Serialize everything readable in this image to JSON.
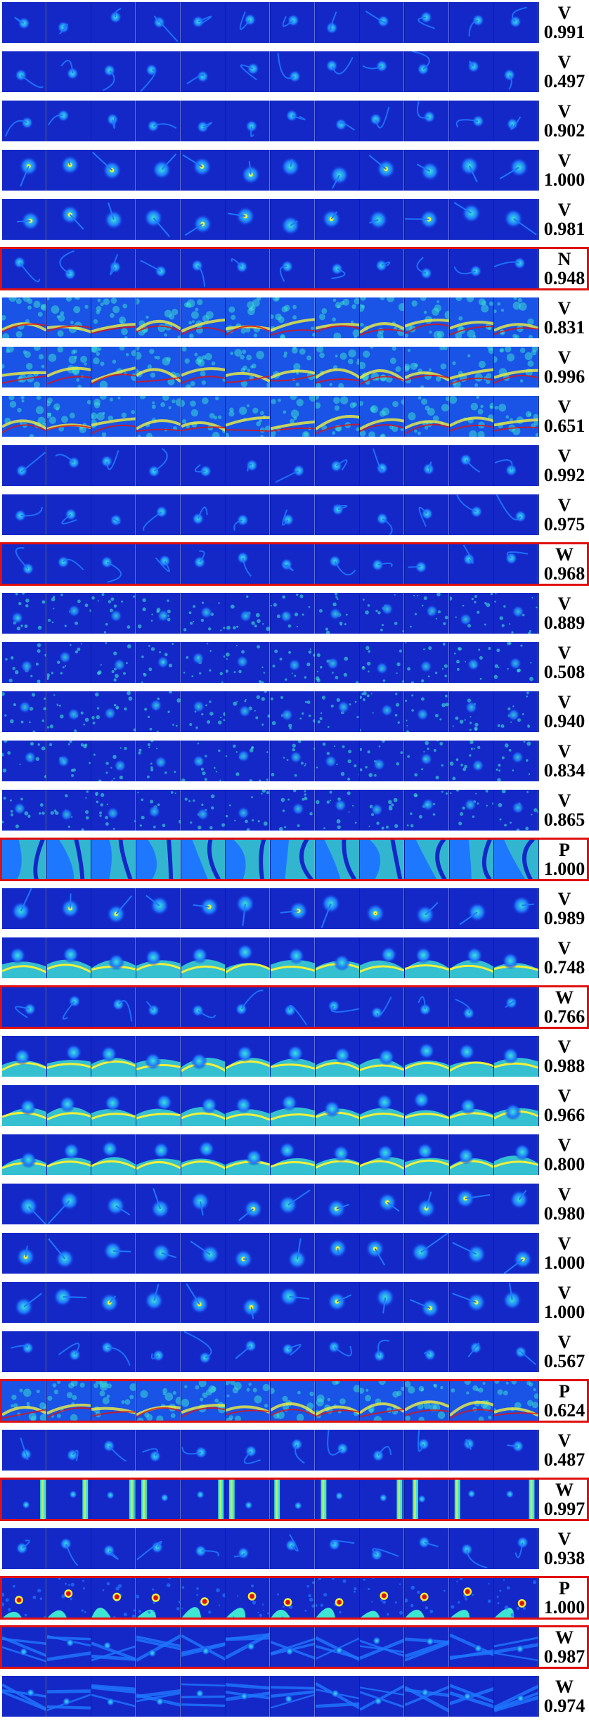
{
  "rows": [
    {
      "label": "V",
      "score": "0.991",
      "highlighted": false,
      "style": "small"
    },
    {
      "label": "V",
      "score": "0.497",
      "highlighted": false,
      "style": "small"
    },
    {
      "label": "V",
      "score": "0.902",
      "highlighted": false,
      "style": "small"
    },
    {
      "label": "V",
      "score": "1.000",
      "highlighted": false,
      "style": "blob"
    },
    {
      "label": "V",
      "score": "0.981",
      "highlighted": false,
      "style": "blob"
    },
    {
      "label": "N",
      "score": "0.948",
      "highlighted": true,
      "style": "small"
    },
    {
      "label": "V",
      "score": "0.831",
      "highlighted": false,
      "style": "tissue"
    },
    {
      "label": "V",
      "score": "0.996",
      "highlighted": false,
      "style": "tissue"
    },
    {
      "label": "V",
      "score": "0.651",
      "highlighted": false,
      "style": "tissue"
    },
    {
      "label": "V",
      "score": "0.992",
      "highlighted": false,
      "style": "small"
    },
    {
      "label": "V",
      "score": "0.975",
      "highlighted": false,
      "style": "small"
    },
    {
      "label": "W",
      "score": "0.968",
      "highlighted": true,
      "style": "small"
    },
    {
      "label": "V",
      "score": "0.889",
      "highlighted": false,
      "style": "speckle"
    },
    {
      "label": "V",
      "score": "0.508",
      "highlighted": false,
      "style": "speckle"
    },
    {
      "label": "V",
      "score": "0.940",
      "highlighted": false,
      "style": "speckle"
    },
    {
      "label": "V",
      "score": "0.834",
      "highlighted": false,
      "style": "speckle"
    },
    {
      "label": "V",
      "score": "0.865",
      "highlighted": false,
      "style": "speckle"
    },
    {
      "label": "P",
      "score": "1.000",
      "highlighted": true,
      "style": "wall"
    },
    {
      "label": "V",
      "score": "0.989",
      "highlighted": false,
      "style": "blob"
    },
    {
      "label": "V",
      "score": "0.748",
      "highlighted": false,
      "style": "ring"
    },
    {
      "label": "W",
      "score": "0.766",
      "highlighted": true,
      "style": "small"
    },
    {
      "label": "V",
      "score": "0.988",
      "highlighted": false,
      "style": "ring"
    },
    {
      "label": "V",
      "score": "0.966",
      "highlighted": false,
      "style": "ring"
    },
    {
      "label": "V",
      "score": "0.800",
      "highlighted": false,
      "style": "ring"
    },
    {
      "label": "V",
      "score": "0.980",
      "highlighted": false,
      "style": "blob"
    },
    {
      "label": "V",
      "score": "1.000",
      "highlighted": false,
      "style": "blob"
    },
    {
      "label": "V",
      "score": "1.000",
      "highlighted": false,
      "style": "blob"
    },
    {
      "label": "V",
      "score": "0.567",
      "highlighted": false,
      "style": "small"
    },
    {
      "label": "P",
      "score": "0.624",
      "highlighted": true,
      "style": "tissue"
    },
    {
      "label": "V",
      "score": "0.487",
      "highlighted": false,
      "style": "small"
    },
    {
      "label": "W",
      "score": "0.997",
      "highlighted": true,
      "style": "bar"
    },
    {
      "label": "V",
      "score": "0.938",
      "highlighted": false,
      "style": "small"
    },
    {
      "label": "P",
      "score": "1.000",
      "highlighted": true,
      "style": "hot"
    },
    {
      "label": "W",
      "score": "0.987",
      "highlighted": true,
      "style": "streak"
    },
    {
      "label": "W",
      "score": "0.974",
      "highlighted": false,
      "style": "streak"
    }
  ],
  "colors": {
    "background": "#1428c8",
    "mid": "#1e78ff",
    "bright": "#3ce6d2",
    "yellow": "#f0f03c",
    "red": "#e01010",
    "highlight_border": "#e01010"
  }
}
